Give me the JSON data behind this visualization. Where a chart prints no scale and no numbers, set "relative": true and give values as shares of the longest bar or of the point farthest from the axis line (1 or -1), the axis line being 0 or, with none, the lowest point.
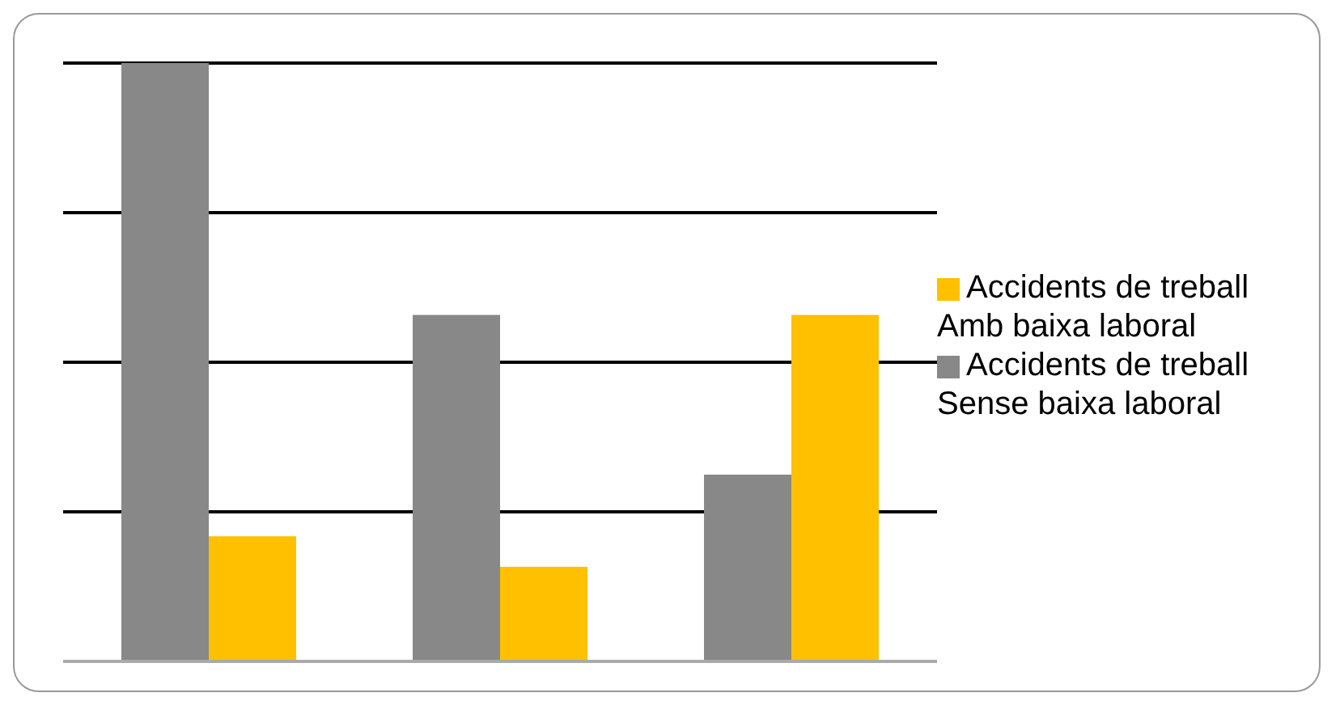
{
  "chart_data": {
    "type": "bar",
    "relative": true,
    "categories": [
      null,
      null,
      null
    ],
    "series": [
      {
        "name": "Accidents de treball Sense baixa laboral",
        "color": "#888888",
        "values": [
          1,
          0.579,
          0.312
        ]
      },
      {
        "name": "Accidents de treball Amb baixa laboral",
        "color": "#ffc000",
        "values": [
          0.209,
          0.158,
          0.579
        ]
      }
    ],
    "grid": "y",
    "legend": "right"
  }
}
